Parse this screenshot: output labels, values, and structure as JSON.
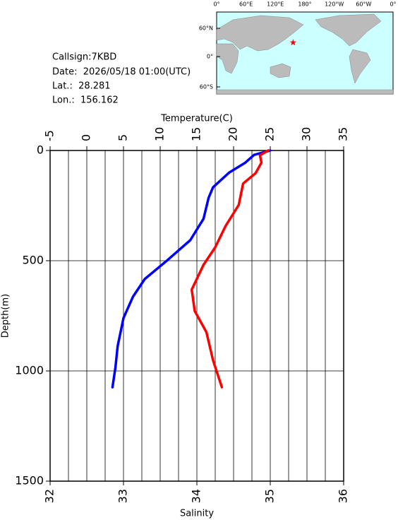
{
  "info": {
    "callsign": "Callsign:7KBD",
    "date": "Date:  2026/05/18 01:00(UTC)",
    "lat_label": "Lat.:  28.281",
    "lon_label": "Lon.:  156.162"
  },
  "map": {
    "lon_labels": [
      "0°",
      "60°E",
      "120°E",
      "180°",
      "120°W",
      "60°W",
      "0°"
    ],
    "lat_labels": [
      "60°N",
      "0°",
      "60°S"
    ],
    "station": {
      "lat": 28.281,
      "lon": 156.162,
      "color": "#ff0000"
    }
  },
  "chart_data": {
    "type": "line",
    "x2label": "Temperature(C)",
    "xlabel": "Salinity",
    "ylabel": "Depth(m)",
    "ylim": [
      0,
      1500
    ],
    "yticks": [
      0,
      500,
      1000,
      1500
    ],
    "x2lim": [
      -5,
      35
    ],
    "x2ticks": [
      -5,
      0,
      5,
      10,
      15,
      20,
      25,
      30,
      35
    ],
    "x2gridlines": [
      -2.5,
      0,
      2.5,
      5,
      7.5,
      10,
      12.5,
      15,
      17.5,
      20,
      22.5,
      25,
      27.5,
      30,
      32.5
    ],
    "xlim": [
      32,
      36
    ],
    "xticks": [
      32,
      33,
      34,
      35,
      36
    ],
    "grid": true,
    "series": [
      {
        "axis": "x2",
        "color": "#0000ff",
        "depth": [
          0,
          20,
          55,
          100,
          167,
          215,
          310,
          407,
          503,
          583,
          663,
          760,
          888,
          984,
          1074
        ],
        "values": [
          25.0,
          22.8,
          21.6,
          19.4,
          17.2,
          16.6,
          15.9,
          14.1,
          10.8,
          7.9,
          6.3,
          5.0,
          4.2,
          3.9,
          3.5
        ]
      },
      {
        "axis": "x",
        "color": "#ff0000",
        "depth": [
          0,
          22,
          55,
          103,
          150,
          247,
          343,
          439,
          519,
          631,
          728,
          824,
          952,
          1074
        ],
        "values": [
          34.97,
          34.86,
          34.88,
          34.8,
          34.63,
          34.57,
          34.39,
          34.25,
          34.09,
          33.93,
          33.97,
          34.13,
          34.22,
          34.34
        ]
      }
    ]
  }
}
